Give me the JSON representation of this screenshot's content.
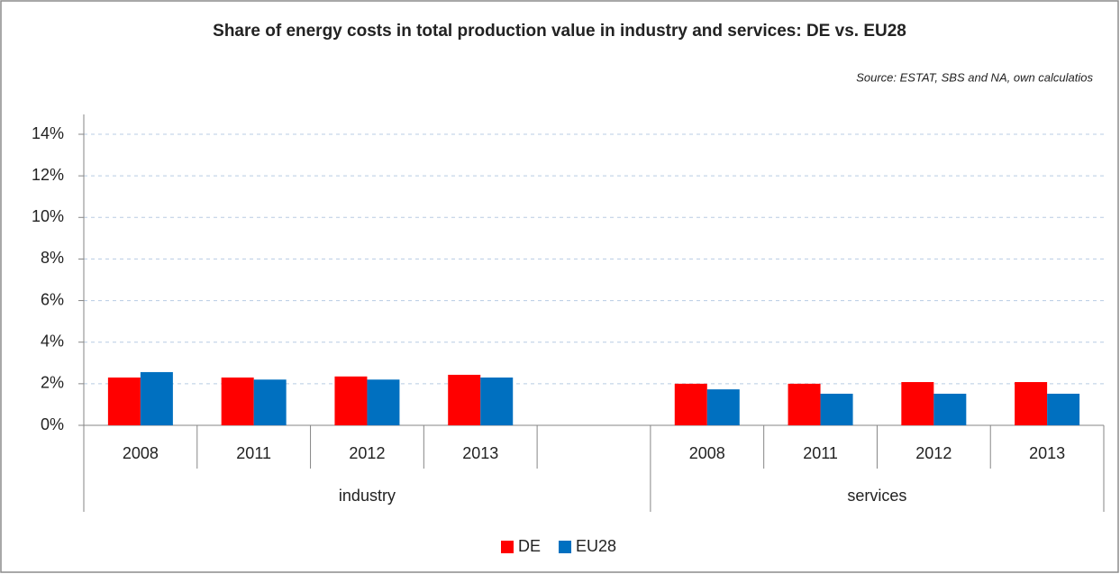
{
  "chart_data": {
    "type": "bar",
    "title": "Share of energy costs in total production value in industry and services: DE vs. EU28",
    "source": "Source: ESTAT, SBS and NA, own calculatios",
    "categories": [
      "2008",
      "2011",
      "2012",
      "2013",
      null,
      "2008",
      "2011",
      "2012",
      "2013"
    ],
    "category_groups": [
      "industry",
      "industry",
      "industry",
      "industry",
      "industry",
      "services",
      "services",
      "services",
      "services"
    ],
    "series": [
      {
        "name": "DE",
        "color": "#ff0000",
        "values": [
          2.3,
          2.3,
          2.35,
          2.43,
          null,
          2.0,
          2.0,
          2.08,
          2.08
        ]
      },
      {
        "name": "EU28",
        "color": "#0070c0",
        "values": [
          2.56,
          2.2,
          2.2,
          2.3,
          null,
          1.73,
          1.52,
          1.52,
          1.52
        ]
      }
    ],
    "ylim": [
      0,
      14
    ],
    "yticks": [
      {
        "value": 0,
        "label": "0%"
      },
      {
        "value": 2,
        "label": "2%"
      },
      {
        "value": 4,
        "label": "4%"
      },
      {
        "value": 6,
        "label": "6%"
      },
      {
        "value": 8,
        "label": "8%"
      },
      {
        "value": 10,
        "label": "10%"
      },
      {
        "value": 12,
        "label": "12%"
      },
      {
        "value": 14,
        "label": "14%"
      }
    ],
    "grid": true,
    "legend": "bottom"
  }
}
